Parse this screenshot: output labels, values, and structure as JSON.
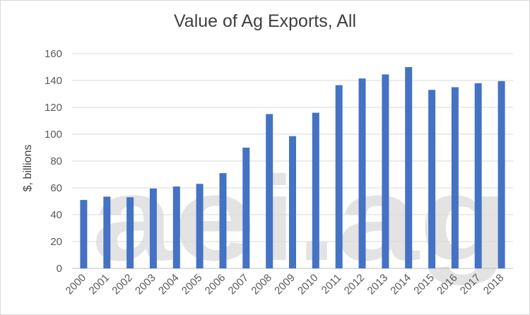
{
  "chart_data": {
    "type": "bar",
    "title": "Value of Ag Exports, All",
    "xlabel": "",
    "ylabel": "$, billions",
    "ylim": [
      0,
      160
    ],
    "yticks": [
      "0",
      "20",
      "40",
      "60",
      "80",
      "100",
      "120",
      "140",
      "160"
    ],
    "grid": true,
    "legend": "none",
    "bar_color": "#4472c4",
    "categories": [
      "2000",
      "2001",
      "2002",
      "2003",
      "2004",
      "2005",
      "2006",
      "2007",
      "2008",
      "2009",
      "2010",
      "2011",
      "2012",
      "2013",
      "2014",
      "2015",
      "2016",
      "2017",
      "2018"
    ],
    "values": [
      51,
      53.5,
      53,
      59.5,
      61,
      63,
      71,
      90,
      115,
      98.5,
      116,
      136.5,
      141.5,
      144.5,
      150,
      133,
      135,
      138,
      139.5
    ]
  },
  "watermark": "aei.ag"
}
